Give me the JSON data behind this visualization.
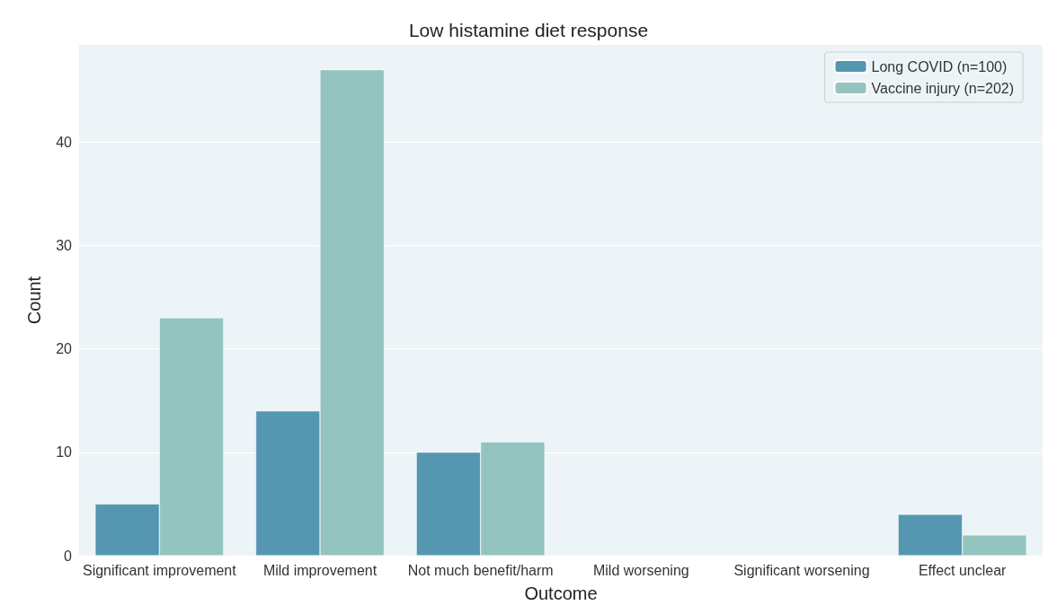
{
  "chart_data": {
    "type": "bar",
    "title": "Low histamine diet response",
    "xlabel": "Outcome",
    "ylabel": "Count",
    "categories": [
      "Significant improvement",
      "Mild improvement",
      "Not much benefit/harm",
      "Mild worsening",
      "Significant worsening",
      "Effect unclear"
    ],
    "series": [
      {
        "name": "Long COVID (n=100)",
        "color": "#5596b0",
        "values": [
          5,
          14,
          10,
          0,
          0,
          4
        ]
      },
      {
        "name": "Vaccine injury (n=202)",
        "color": "#94c4bf",
        "values": [
          23,
          47,
          11,
          0,
          0,
          2
        ]
      }
    ],
    "ylim": [
      0,
      49.4
    ],
    "yticks": [
      0,
      10,
      20,
      30,
      40
    ],
    "grid": "y",
    "legend": "top right"
  }
}
